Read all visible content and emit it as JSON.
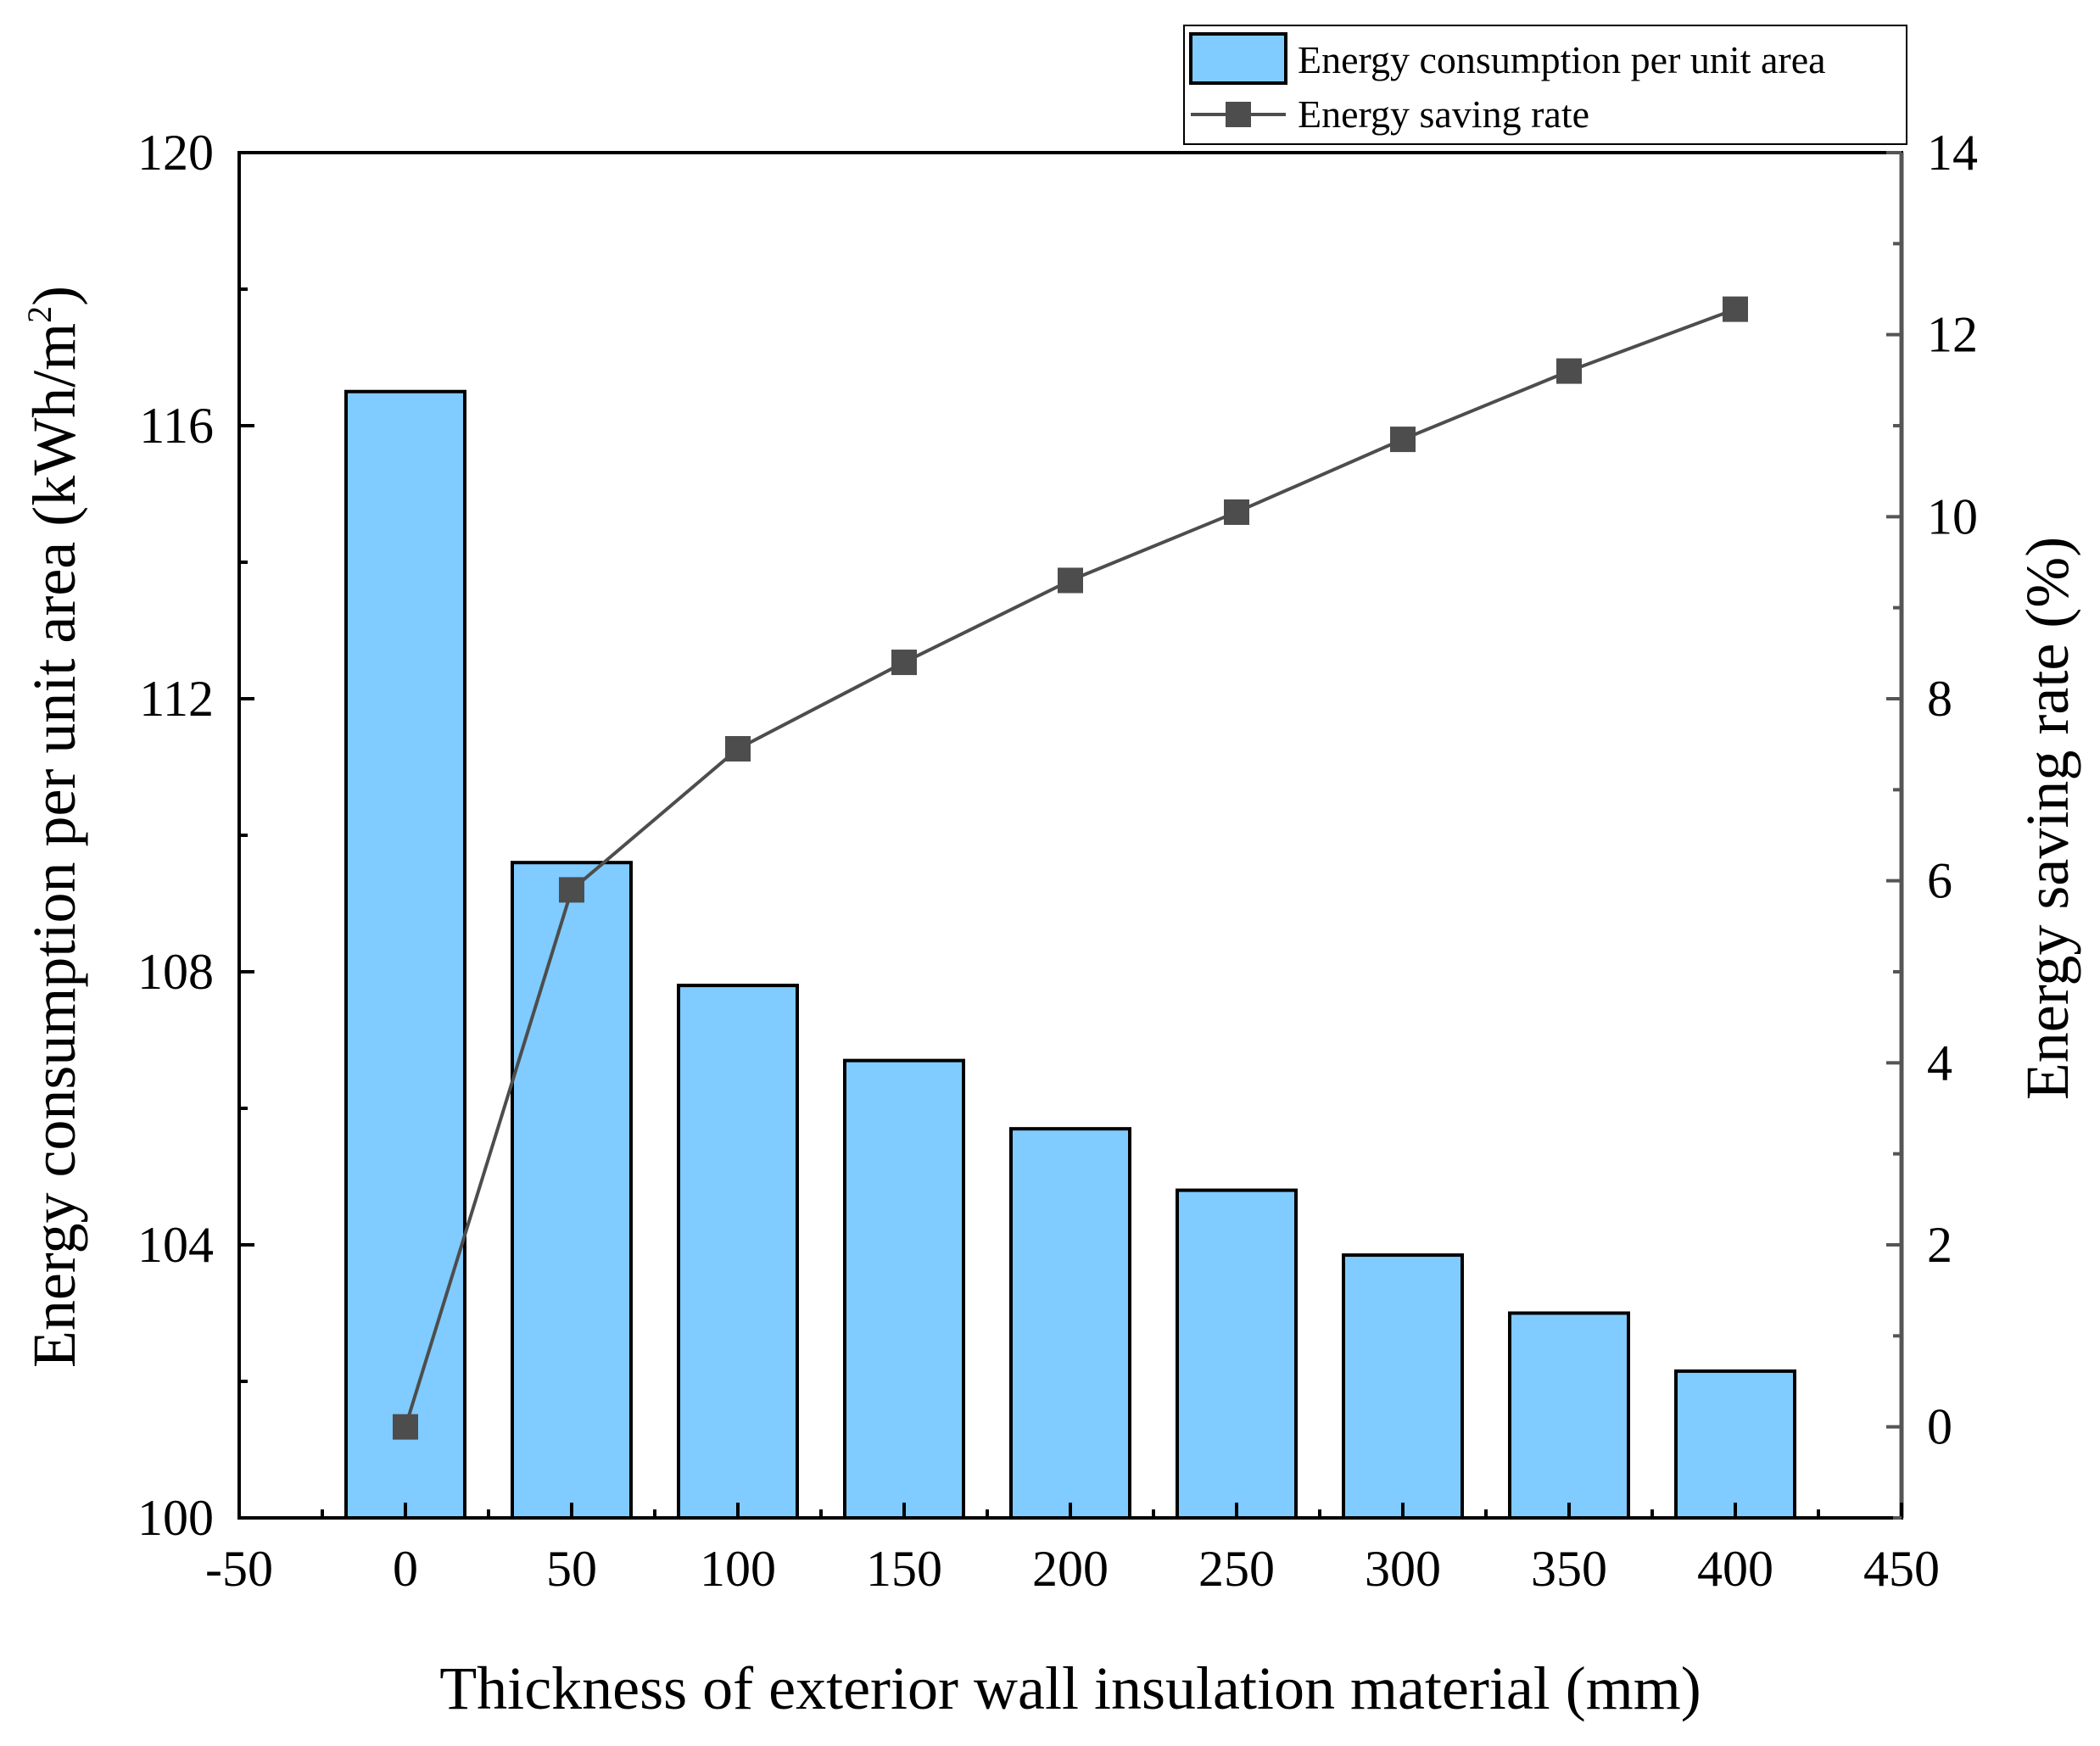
{
  "chart_data": {
    "type": "bar",
    "x_label": "Thickness of exterior wall insulation material (mm)",
    "y_left_label": "Energy consumption per unit area (kWh/m",
    "y_left_label_sup": "2",
    "y_left_label_close": ")",
    "y_right_label": "Energy saving rate (%)",
    "x_range": [
      -50,
      450
    ],
    "x_ticks": [
      "-50",
      "0",
      "50",
      "100",
      "150",
      "200",
      "250",
      "300",
      "350",
      "400",
      "450"
    ],
    "y_left_range": [
      100,
      120
    ],
    "y_left_ticks": [
      "100",
      "104",
      "108",
      "112",
      "116",
      "120"
    ],
    "y_right_range": [
      -1,
      14
    ],
    "y_right_ticks": [
      "0",
      "2",
      "4",
      "6",
      "8",
      "10",
      "12",
      "14"
    ],
    "x": [
      0,
      50,
      100,
      150,
      200,
      250,
      300,
      350,
      400
    ],
    "series": [
      {
        "name": "Energy consumption per unit area",
        "type": "bar",
        "axis": "left",
        "color": "#80CBFF",
        "values": [
          116.5,
          109.6,
          107.8,
          106.7,
          105.7,
          104.8,
          103.85,
          103.0,
          102.15
        ]
      },
      {
        "name": "Energy saving rate",
        "type": "line",
        "axis": "right",
        "color": "#4D4D4D",
        "marker": "square",
        "values": [
          0.0,
          5.9,
          7.45,
          8.4,
          9.3,
          10.05,
          10.85,
          11.6,
          12.28
        ]
      }
    ],
    "legend_position": "top-right"
  }
}
